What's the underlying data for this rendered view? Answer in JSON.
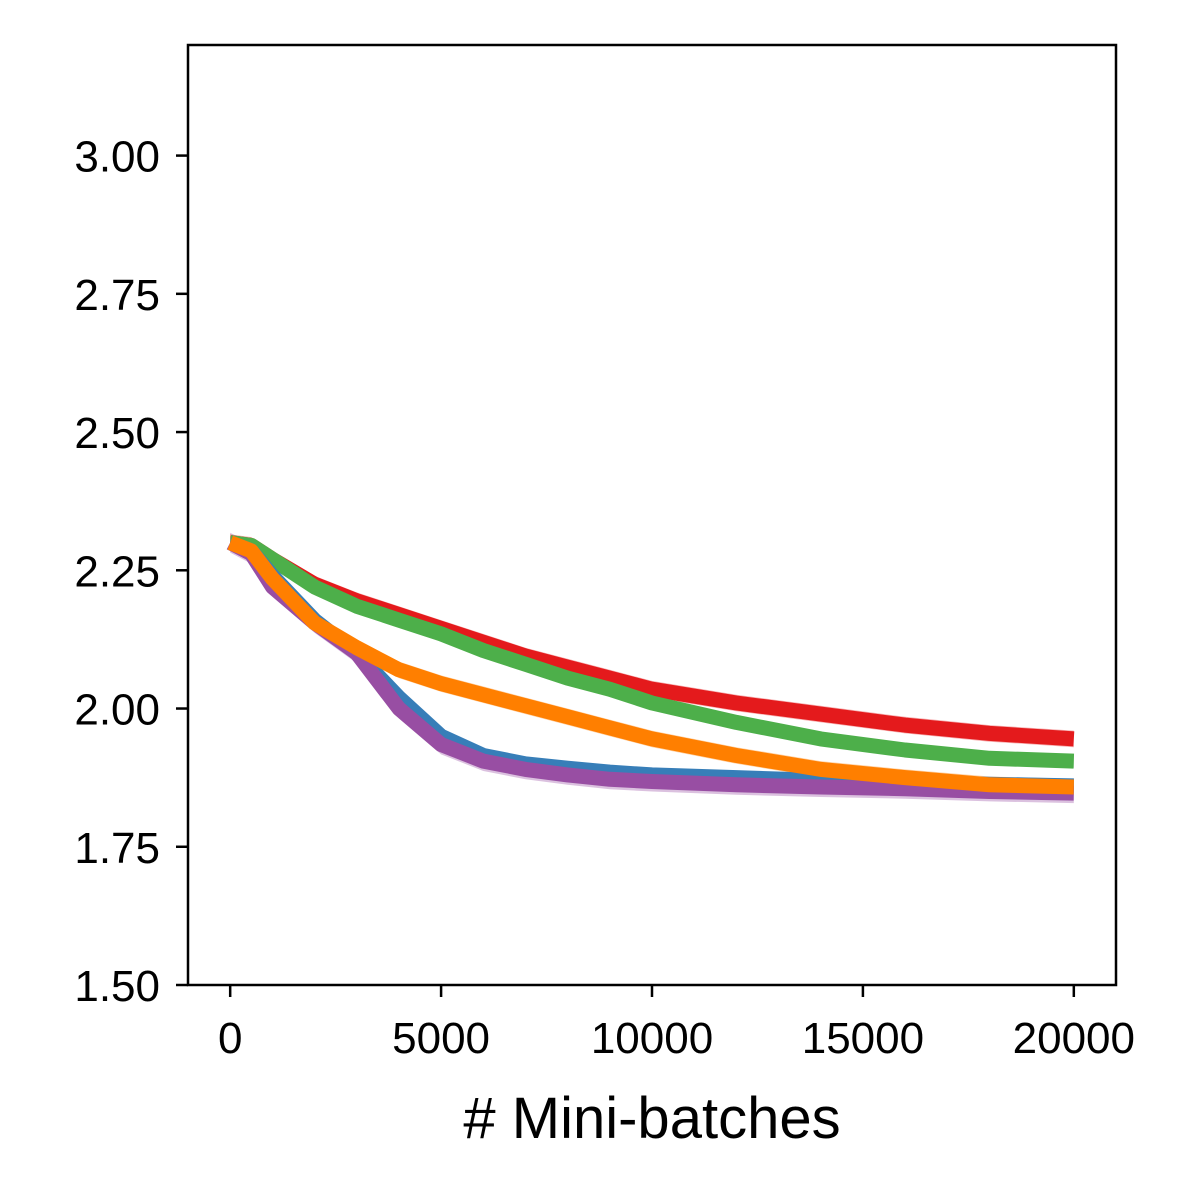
{
  "chart_data": {
    "type": "line",
    "title": "",
    "xlabel": "# Mini-batches",
    "ylabel": "",
    "xlim": [
      -1000,
      21000
    ],
    "ylim": [
      1.5,
      3.2
    ],
    "xticks": [
      0,
      5000,
      10000,
      15000,
      20000
    ],
    "xtick_labels": [
      "0",
      "5000",
      "10000",
      "15000",
      "20000"
    ],
    "yticks": [
      1.5,
      1.75,
      2.0,
      2.25,
      2.5,
      2.75,
      3.0
    ],
    "ytick_labels": [
      "1.50",
      "1.75",
      "2.00",
      "2.25",
      "2.50",
      "2.75",
      "3.00"
    ],
    "grid": false,
    "legend": "none",
    "x": [
      0,
      500,
      1000,
      2000,
      3000,
      4000,
      5000,
      6000,
      7000,
      8000,
      9000,
      10000,
      12000,
      14000,
      16000,
      18000,
      20000
    ],
    "series": [
      {
        "color": "#e41a1c",
        "values": [
          2.3,
          2.295,
          2.27,
          2.225,
          2.195,
          2.17,
          2.145,
          2.12,
          2.095,
          2.075,
          2.055,
          2.035,
          2.01,
          1.99,
          1.97,
          1.955,
          1.945
        ],
        "band": 0.015
      },
      {
        "color": "#4daf4a",
        "values": [
          2.3,
          2.295,
          2.27,
          2.22,
          2.185,
          2.16,
          2.135,
          2.105,
          2.08,
          2.055,
          2.035,
          2.01,
          1.975,
          1.945,
          1.925,
          1.91,
          1.905
        ],
        "band": 0.012
      },
      {
        "color": "#377eb8",
        "values": [
          2.3,
          2.285,
          2.24,
          2.16,
          2.1,
          2.02,
          1.95,
          1.915,
          1.9,
          1.892,
          1.885,
          1.88,
          1.875,
          1.87,
          1.865,
          1.863,
          1.86
        ],
        "band": 0.012
      },
      {
        "color": "#984ea3",
        "values": [
          2.3,
          2.28,
          2.22,
          2.155,
          2.1,
          2.0,
          1.935,
          1.905,
          1.89,
          1.88,
          1.872,
          1.868,
          1.862,
          1.858,
          1.855,
          1.85,
          1.847
        ],
        "band": 0.018
      },
      {
        "color": "#ff7f00",
        "values": [
          2.3,
          2.285,
          2.235,
          2.155,
          2.11,
          2.07,
          2.045,
          2.025,
          2.005,
          1.985,
          1.965,
          1.945,
          1.915,
          1.89,
          1.875,
          1.862,
          1.858
        ],
        "band": 0.015
      }
    ]
  }
}
